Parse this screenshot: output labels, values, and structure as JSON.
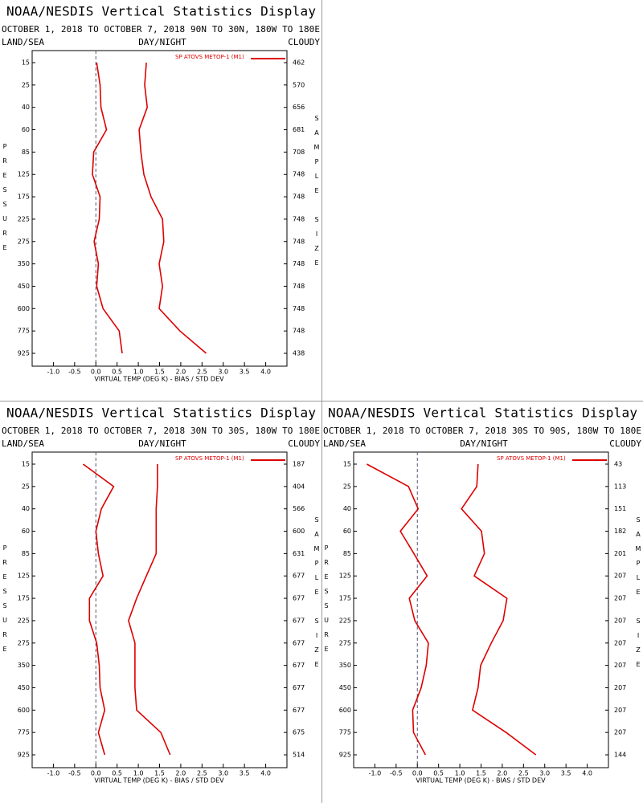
{
  "chart_data": [
    {
      "type": "line",
      "title": "NOAA/NESDIS Vertical Statistics Display",
      "subtitle": "OCTOBER 1, 2018 TO OCTOBER 7, 2018  90N TO 30N, 180W TO 180E",
      "left_label": "LAND/SEA",
      "center_label": "DAY/NIGHT",
      "right_label": "CLOUDY",
      "legend": "SP ATOVS METOP-1 (M1)",
      "ylabel": "PRESSURE",
      "y2label": "SAMPLE SIZE",
      "xlabel": "VIRTUAL TEMP (DEG K) - BIAS / STD DEV",
      "categories": [
        15,
        25,
        40,
        60,
        85,
        125,
        175,
        225,
        275,
        350,
        450,
        600,
        775,
        925
      ],
      "sample_size": [
        462,
        570,
        656,
        681,
        708,
        748,
        748,
        748,
        748,
        748,
        748,
        748,
        748,
        438
      ],
      "series": [
        {
          "color": "#dd0000",
          "values": [
            0.02,
            0.1,
            0.12,
            0.25,
            -0.05,
            -0.08,
            0.1,
            0.08,
            -0.04,
            0.06,
            0.02,
            0.17,
            0.55,
            0.62
          ]
        },
        {
          "color": "#dd0000",
          "values": [
            1.19,
            1.15,
            1.21,
            1.02,
            1.06,
            1.13,
            1.3,
            1.57,
            1.6,
            1.49,
            1.57,
            1.49,
            1.98,
            2.6
          ]
        }
      ],
      "xlim": [
        -1.5,
        4.5
      ],
      "xticks": [
        {
          "value": -1,
          "label": "-1.0"
        },
        -0.5,
        {
          "value": 0,
          "label": "0.0"
        },
        0.5,
        {
          "value": 1,
          "label": "1.0"
        },
        1.5,
        {
          "value": 2,
          "label": "2.0"
        },
        2.5,
        {
          "value": 3,
          "label": "3.0"
        },
        3.5,
        {
          "value": 4,
          "label": "4.0"
        }
      ]
    },
    {
      "type": "line",
      "title": "NOAA/NESDIS Vertical Statistics Display",
      "subtitle": "OCTOBER 1, 2018 TO OCTOBER 7, 2018  30N TO 30S, 180W TO 180E",
      "left_label": "LAND/SEA",
      "center_label": "DAY/NIGHT",
      "right_label": "CLOUDY",
      "legend": "SP ATOVS METOP-1 (M1)",
      "ylabel": "PRESSURE",
      "y2label": "SAMPLE SIZE",
      "xlabel": "VIRTUAL TEMP (DEG K) - BIAS / STD DEV",
      "categories": [
        15,
        25,
        40,
        60,
        85,
        125,
        175,
        225,
        275,
        350,
        450,
        600,
        775,
        925
      ],
      "sample_size": [
        187,
        404,
        566,
        600,
        631,
        677,
        677,
        677,
        677,
        677,
        677,
        677,
        675,
        514
      ],
      "series": [
        {
          "color": "#dd0000",
          "values": [
            -0.3,
            0.42,
            0.13,
            0.0,
            0.06,
            0.17,
            -0.15,
            -0.15,
            0.02,
            0.08,
            0.1,
            0.21,
            0.06,
            0.21
          ]
        },
        {
          "color": "#dd0000",
          "values": [
            1.45,
            1.45,
            1.42,
            1.42,
            1.42,
            1.19,
            0.96,
            0.77,
            0.92,
            0.92,
            0.92,
            0.96,
            1.53,
            1.75
          ]
        }
      ],
      "xlim": [
        -1.5,
        4.5
      ],
      "xticks": [
        {
          "value": -1,
          "label": "-1.0"
        },
        -0.5,
        {
          "value": 0,
          "label": "0.0"
        },
        0.5,
        {
          "value": 1,
          "label": "1.0"
        },
        1.5,
        {
          "value": 2,
          "label": "2.0"
        },
        2.5,
        {
          "value": 3,
          "label": "3.0"
        },
        3.5,
        {
          "value": 4,
          "label": "4.0"
        }
      ]
    },
    {
      "type": "line",
      "title": "NOAA/NESDIS Vertical Statistics Display",
      "subtitle": "OCTOBER 1, 2018 TO OCTOBER 7, 2018  30S TO 90S, 180W TO 180E",
      "left_label": "LAND/SEA",
      "center_label": "DAY/NIGHT",
      "right_label": "CLOUDY",
      "legend": "SP ATOVS METOP-1 (M1)",
      "ylabel": "PRESSURE",
      "y2label": "SAMPLE SIZE",
      "xlabel": "VIRTUAL TEMP (DEG K) - BIAS / STD DEV",
      "categories": [
        15,
        25,
        40,
        60,
        85,
        125,
        175,
        225,
        275,
        350,
        450,
        600,
        775,
        925
      ],
      "sample_size": [
        43,
        113,
        151,
        182,
        201,
        207,
        207,
        207,
        207,
        207,
        207,
        207,
        207,
        144
      ],
      "series": [
        {
          "color": "#dd0000",
          "values": [
            -1.19,
            -0.21,
            0.02,
            -0.4,
            -0.08,
            0.23,
            -0.19,
            -0.06,
            0.26,
            0.21,
            0.09,
            -0.11,
            -0.09,
            0.19
          ]
        },
        {
          "color": "#dd0000",
          "values": [
            1.43,
            1.4,
            1.04,
            1.51,
            1.58,
            1.34,
            2.11,
            2.02,
            1.74,
            1.49,
            1.43,
            1.3,
            2.09,
            2.79
          ]
        }
      ],
      "xlim": [
        -1.5,
        4.5
      ],
      "xticks": [
        {
          "value": -1,
          "label": "-1.0"
        },
        -0.5,
        {
          "value": 0,
          "label": "0.0"
        },
        0.5,
        {
          "value": 1,
          "label": "1.0"
        },
        1.5,
        {
          "value": 2,
          "label": "2.0"
        },
        2.5,
        {
          "value": 3,
          "label": "3.0"
        },
        3.5,
        {
          "value": 4,
          "label": "4.0"
        }
      ]
    }
  ]
}
